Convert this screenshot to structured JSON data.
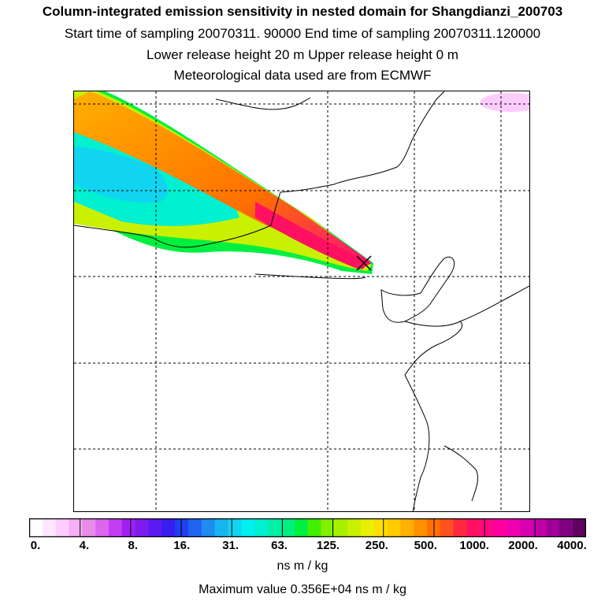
{
  "header": {
    "title": "Column-integrated emission sensitivity in nested domain for Shangdianzi_200703",
    "line2": "Start time of sampling 20070311. 90000     End time of sampling 20070311.120000",
    "line3": "Lower release height   20 m          Upper release height    0 m",
    "line4": "Meteorological data used are from ECMWF"
  },
  "colorbar": {
    "colors": [
      "#ffffff",
      "#ffe6ff",
      "#ffccff",
      "#f5b0f5",
      "#e88ce8",
      "#dd66ee",
      "#c43cf0",
      "#a020f0",
      "#7c1cf0",
      "#5a1af0",
      "#3a1ef0",
      "#2040f0",
      "#1e64f0",
      "#1e8cf0",
      "#18b4f0",
      "#10d4f0",
      "#00f0f0",
      "#00f0d0",
      "#00f0a8",
      "#00f080",
      "#00f040",
      "#40f000",
      "#80f000",
      "#a8f000",
      "#c8f000",
      "#e8f000",
      "#ffe000",
      "#ffcc00",
      "#ffb000",
      "#ff9000",
      "#ff7000",
      "#ff5020",
      "#ff2840",
      "#ff1060",
      "#ff0880",
      "#ff00a0",
      "#f000b0",
      "#d800b0",
      "#c000a8",
      "#a00098",
      "#800080",
      "#600060"
    ],
    "ticks": [
      "0.",
      "4.",
      "8.",
      "16.",
      "31.",
      "63.",
      "125.",
      "250.",
      "500.",
      "1000.",
      "2000.",
      "4000."
    ],
    "units": "ns m / kg"
  },
  "footer": {
    "max_value": "Maximum value  0.356E+04 ns m / kg"
  },
  "map": {
    "release_site_marker": "x-marker-icon",
    "colors": {
      "coast": "#000000",
      "grid": "#000000"
    }
  }
}
